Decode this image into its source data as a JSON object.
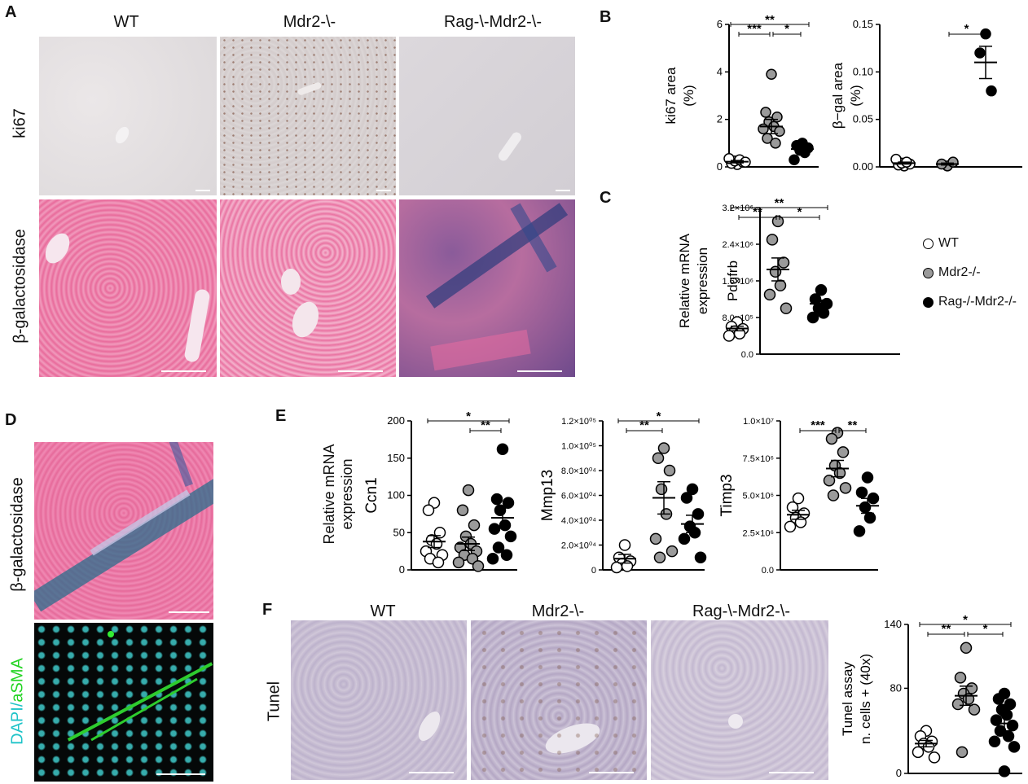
{
  "panels": {
    "A": {
      "letter": "A",
      "columns": [
        "WT",
        "Mdr2-\\-",
        "Rag-\\-Mdr2-\\-"
      ],
      "rows": [
        "ki67",
        "β-galactosidase"
      ]
    },
    "B": {
      "letter": "B"
    },
    "C": {
      "letter": "C"
    },
    "D": {
      "letter": "D",
      "top_label": "β-galactosidase",
      "bottom_label_a": "DAPI/",
      "bottom_label_b": "aSMA"
    },
    "E": {
      "letter": "E",
      "ylabel_l1": "Relative mRNA",
      "ylabel_l2": "expression"
    },
    "F": {
      "letter": "F",
      "columns": [
        "WT",
        "Mdr2-\\-",
        "Rag-\\-Mdr2-\\-"
      ],
      "row": "Tunel"
    }
  },
  "legend": {
    "items": [
      {
        "label": "WT",
        "fill": "#ffffff"
      },
      {
        "label": "Mdr2-/-",
        "fill": "#9a9a9a"
      },
      {
        "label": "Rag-/-Mdr2-/-",
        "fill": "#000000"
      }
    ]
  },
  "colors": {
    "wt": "#ffffff",
    "mdr2": "#9a9a9a",
    "rag": "#000000"
  },
  "chart_data": [
    {
      "id": "ki67",
      "type": "scatter",
      "ylabel_l1": "ki67 area",
      "ylabel_l2": "(%)",
      "ylim": [
        0,
        6
      ],
      "yticks": [
        "0",
        "2",
        "4",
        "6"
      ],
      "ytick_values": [
        0,
        2,
        4,
        6
      ],
      "groups": [
        {
          "group": "WT",
          "values": [
            0.1,
            0.15,
            0.2,
            0.25,
            0.3,
            0.35,
            0.2
          ],
          "mean": 0.22,
          "sem": 0.05
        },
        {
          "group": "Mdr2-/-",
          "values": [
            3.9,
            2.3,
            2.1,
            1.9,
            1.7,
            1.6,
            1.5,
            1.2,
            1.0
          ],
          "mean": 1.7,
          "sem": 0.3
        },
        {
          "group": "Rag-/-Mdr2-/-",
          "values": [
            1.0,
            0.9,
            0.8,
            0.7,
            0.6,
            0.3
          ],
          "mean": 0.75,
          "sem": 0.1
        }
      ],
      "brackets": [
        {
          "from": 0,
          "to": 1,
          "label": "***"
        },
        {
          "from": 0,
          "to": 2,
          "label": "**"
        },
        {
          "from": 1,
          "to": 2,
          "label": "*"
        }
      ]
    },
    {
      "id": "bgal",
      "type": "scatter",
      "ylabel_l1": "β−gal area",
      "ylabel_l2": "(%)",
      "ylim": [
        0,
        0.15
      ],
      "yticks": [
        "0.00",
        "0.05",
        "0.10",
        "0.15"
      ],
      "ytick_values": [
        0,
        0.05,
        0.1,
        0.15
      ],
      "groups": [
        {
          "group": "WT",
          "values": [
            0.001,
            0.002,
            0.003,
            0.004,
            0.005,
            0.008
          ],
          "mean": 0.004,
          "sem": 0.001
        },
        {
          "group": "Mdr2-/-",
          "values": [
            0.001,
            0.003,
            0.005
          ],
          "mean": 0.003,
          "sem": 0.001
        },
        {
          "group": "Rag-/-Mdr2-/-",
          "values": [
            0.14,
            0.12,
            0.08
          ],
          "mean": 0.11,
          "sem": 0.017
        }
      ],
      "brackets": [
        {
          "from": 1,
          "to": 2,
          "label": "*"
        }
      ]
    },
    {
      "id": "pdgfrb",
      "type": "scatter",
      "ylabel_l1": "Relative mRNA",
      "ylabel_l2": "expression",
      "ylabel_l3": "Pdgfrb",
      "ylim": [
        0,
        3200000
      ],
      "yticks": [
        "0.0",
        "8.0×10⁵",
        "1.6×10⁶",
        "2.4×10⁶",
        "3.2×10⁶"
      ],
      "ytick_values": [
        0,
        800000,
        1600000,
        2400000,
        3200000
      ],
      "groups": [
        {
          "group": "WT",
          "values": [
            700000,
            600000,
            550000,
            500000,
            450000,
            400000
          ],
          "mean": 560000,
          "sem": 50000
        },
        {
          "group": "Mdr2-/-",
          "values": [
            2900000,
            2500000,
            2000000,
            1800000,
            1500000,
            1300000,
            1000000
          ],
          "mean": 1850000,
          "sem": 250000
        },
        {
          "group": "Rag-/-Mdr2-/-",
          "values": [
            1400000,
            1200000,
            1100000,
            1000000,
            900000,
            800000
          ],
          "mean": 1100000,
          "sem": 80000
        }
      ],
      "brackets": [
        {
          "from": 0,
          "to": 1,
          "label": "**"
        },
        {
          "from": 0,
          "to": 2,
          "label": "**"
        },
        {
          "from": 1,
          "to": 2,
          "label": "*"
        }
      ]
    },
    {
      "id": "ccn1",
      "type": "scatter",
      "ylabel_l1": "Ccn1",
      "ylim": [
        0,
        200
      ],
      "yticks": [
        "0",
        "50",
        "100",
        "150",
        "200"
      ],
      "ytick_values": [
        0,
        50,
        100,
        150,
        200
      ],
      "groups": [
        {
          "group": "WT",
          "values": [
            90,
            80,
            50,
            40,
            35,
            25,
            20,
            15,
            10
          ],
          "mean": 38,
          "sem": 8
        },
        {
          "group": "Mdr2-/-",
          "values": [
            107,
            80,
            60,
            45,
            35,
            30,
            25,
            20,
            15,
            10,
            5
          ],
          "mean": 35,
          "sem": 9
        },
        {
          "group": "Rag-/-Mdr2-/-",
          "values": [
            162,
            95,
            90,
            80,
            60,
            55,
            45,
            30,
            20,
            15
          ],
          "mean": 70,
          "sem": 13
        }
      ],
      "brackets": [
        {
          "from": 0,
          "to": 2,
          "label": "*"
        },
        {
          "from": 1,
          "to": 2,
          "label": "**"
        }
      ]
    },
    {
      "id": "mmp13",
      "type": "scatter",
      "ylabel_l1": "Mmp13",
      "ylim": [
        0,
        120000
      ],
      "yticks": [
        "0",
        "2.0×10⁰⁴",
        "4.0×10⁰⁴",
        "6.0×10⁰⁴",
        "8.0×10⁰⁴",
        "1.0×10⁰⁵",
        "1.2×10⁰⁵"
      ],
      "ytick_values": [
        0,
        20000,
        40000,
        60000,
        80000,
        100000,
        120000
      ],
      "groups": [
        {
          "group": "WT",
          "values": [
            20000,
            10000,
            7000,
            5000,
            3000,
            2000
          ],
          "mean": 9000,
          "sem": 3500
        },
        {
          "group": "Mdr2-/-",
          "values": [
            98000,
            90000,
            80000,
            65000,
            45000,
            25000,
            15000,
            10000
          ],
          "mean": 58000,
          "sem": 13000
        },
        {
          "group": "Rag-/-Mdr2-/-",
          "values": [
            65000,
            58000,
            45000,
            35000,
            30000,
            25000,
            10000
          ],
          "mean": 37000,
          "sem": 7000
        }
      ],
      "brackets": [
        {
          "from": 0,
          "to": 1,
          "label": "**"
        },
        {
          "from": 0,
          "to": 2,
          "label": "*"
        }
      ]
    },
    {
      "id": "timp3",
      "type": "scatter",
      "ylabel_l1": "Timp3",
      "ylim": [
        0,
        10000000
      ],
      "yticks": [
        "0.0",
        "2.5×10⁶",
        "5.0×10⁶",
        "7.5×10⁶",
        "1.0×10⁷"
      ],
      "ytick_values": [
        0,
        2500000,
        5000000,
        7500000,
        10000000
      ],
      "groups": [
        {
          "group": "WT",
          "values": [
            4800000,
            4200000,
            3800000,
            3500000,
            3200000,
            2900000
          ],
          "mean": 3700000,
          "sem": 300000
        },
        {
          "group": "Mdr2-/-",
          "values": [
            9200000,
            8800000,
            7900000,
            7000000,
            6500000,
            6000000,
            5500000,
            5000000
          ],
          "mean": 6800000,
          "sem": 550000
        },
        {
          "group": "Rag-/-Mdr2-/-",
          "values": [
            6200000,
            5200000,
            4800000,
            4200000,
            3500000,
            2600000
          ],
          "mean": 4300000,
          "sem": 500000
        }
      ],
      "brackets": [
        {
          "from": 0,
          "to": 1,
          "label": "***"
        },
        {
          "from": 1,
          "to": 2,
          "label": "**"
        }
      ]
    },
    {
      "id": "tunel",
      "type": "scatter",
      "ylabel_l1": "Tunel assay",
      "ylabel_l2": "n. cells + (40x)",
      "ylim": [
        0,
        140
      ],
      "yticks": [
        "0",
        "80",
        "140"
      ],
      "ytick_values": [
        0,
        80,
        140
      ],
      "groups": [
        {
          "group": "WT",
          "values": [
            40,
            35,
            30,
            28,
            25,
            20,
            15
          ],
          "mean": 28,
          "sem": 3
        },
        {
          "group": "Mdr2-/-",
          "values": [
            118,
            90,
            80,
            75,
            70,
            65,
            60,
            20
          ],
          "mean": 73,
          "sem": 9
        },
        {
          "group": "Rag-/-Mdr2-/-",
          "values": [
            75,
            70,
            65,
            60,
            55,
            50,
            45,
            40,
            35,
            30,
            25,
            2
          ],
          "mean": 47,
          "sem": 7
        }
      ],
      "brackets": [
        {
          "from": 0,
          "to": 1,
          "label": "**"
        },
        {
          "from": 0,
          "to": 2,
          "label": "*"
        },
        {
          "from": 1,
          "to": 2,
          "label": "*"
        }
      ]
    }
  ]
}
